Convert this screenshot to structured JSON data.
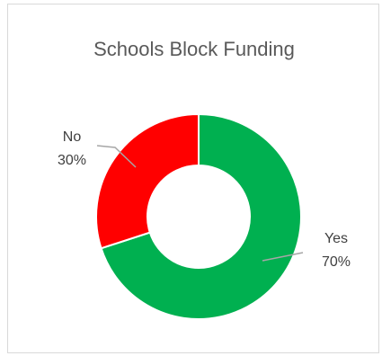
{
  "chart_data": {
    "type": "pie",
    "variant": "doughnut",
    "title": "Schools Block Funding",
    "categories": [
      "Yes",
      "No"
    ],
    "values": [
      70,
      30
    ],
    "data_labels": [
      {
        "category": "Yes",
        "percent": "70%"
      },
      {
        "category": "No",
        "percent": "30%"
      }
    ],
    "colors": [
      "#00B050",
      "#FF0000"
    ],
    "legend": "none"
  }
}
